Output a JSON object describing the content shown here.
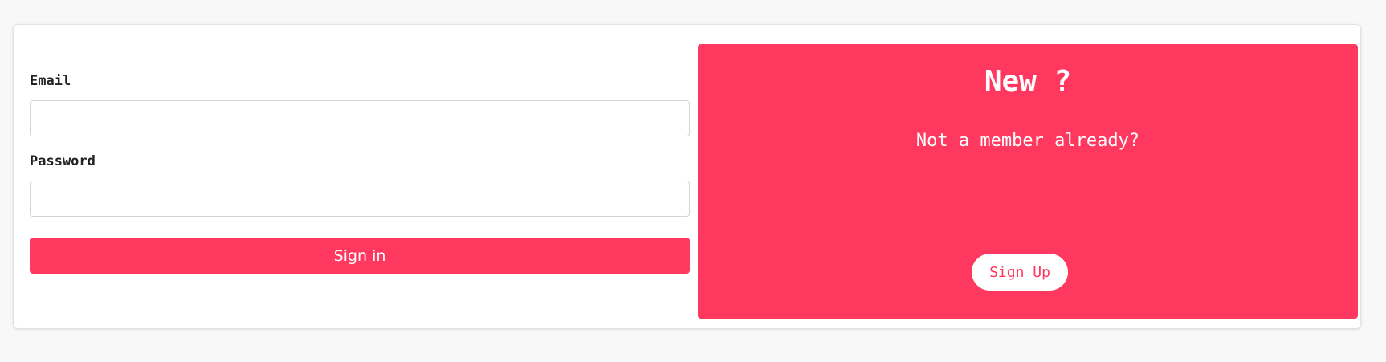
{
  "colors": {
    "accent": "#ff3860",
    "background": "#f8f8f8",
    "card": "#ffffff"
  },
  "signin_form": {
    "email_label": "Email",
    "email_value": "",
    "password_label": "Password",
    "password_value": "",
    "submit_label": "Sign in"
  },
  "signup_panel": {
    "title": "New ?",
    "text": "Not a member already?",
    "button_label": "Sign Up"
  }
}
